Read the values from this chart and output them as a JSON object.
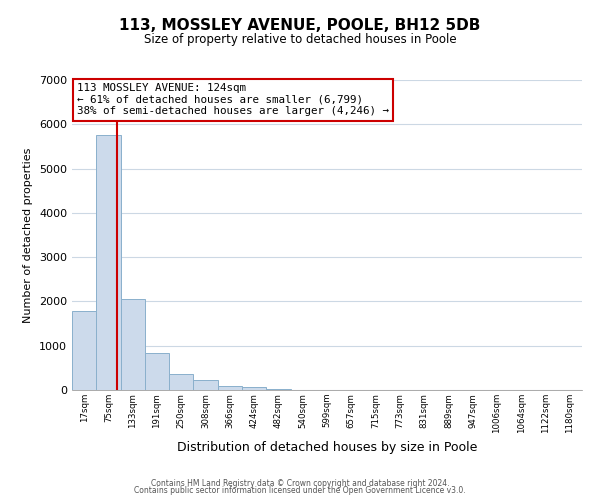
{
  "title": "113, MOSSLEY AVENUE, POOLE, BH12 5DB",
  "subtitle": "Size of property relative to detached houses in Poole",
  "xlabel": "Distribution of detached houses by size in Poole",
  "ylabel": "Number of detached properties",
  "bin_labels": [
    "17sqm",
    "75sqm",
    "133sqm",
    "191sqm",
    "250sqm",
    "308sqm",
    "366sqm",
    "424sqm",
    "482sqm",
    "540sqm",
    "599sqm",
    "657sqm",
    "715sqm",
    "773sqm",
    "831sqm",
    "889sqm",
    "947sqm",
    "1006sqm",
    "1064sqm",
    "1122sqm",
    "1180sqm"
  ],
  "bar_heights": [
    1780,
    5750,
    2060,
    830,
    370,
    220,
    100,
    60,
    30,
    10,
    0,
    0,
    0,
    0,
    0,
    0,
    0,
    0,
    0,
    0,
    0
  ],
  "bar_color": "#ccdaeb",
  "bar_edge_color": "#8ab0cc",
  "vline_pos": 1.845,
  "vline_color": "#cc0000",
  "ylim": [
    0,
    7000
  ],
  "yticks": [
    0,
    1000,
    2000,
    3000,
    4000,
    5000,
    6000,
    7000
  ],
  "annotation_line1": "113 MOSSLEY AVENUE: 124sqm",
  "annotation_line2": "← 61% of detached houses are smaller (6,799)",
  "annotation_line3": "38% of semi-detached houses are larger (4,246) →",
  "annotation_box_color": "#ffffff",
  "annotation_box_edge": "#cc0000",
  "footer_line1": "Contains HM Land Registry data © Crown copyright and database right 2024.",
  "footer_line2": "Contains public sector information licensed under the Open Government Licence v3.0.",
  "background_color": "#ffffff",
  "grid_color": "#ccd8e4"
}
